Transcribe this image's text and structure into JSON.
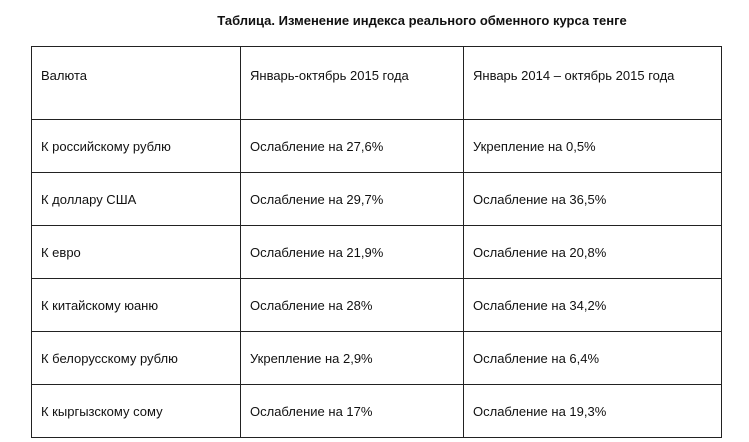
{
  "title": "Таблица. Изменение индекса реального обменного курса тенге",
  "table": {
    "header": [
      "Валюта",
      "Январь-октябрь 2015 года",
      "Январь 2014 – октябрь 2015 года"
    ],
    "rows": [
      [
        "К российскому рублю",
        "Ослабление на 27,6%",
        "Укрепление на 0,5%"
      ],
      [
        "К доллару США",
        "Ослабление на 29,7%",
        "Ослабление на 36,5%"
      ],
      [
        "К евро",
        "Ослабление на 21,9%",
        "Ослабление на 20,8%"
      ],
      [
        "К китайскому юаню",
        "Ослабление на 28%",
        "Ослабление на 34,2%"
      ],
      [
        "К белорусскому рублю",
        "Укрепление на 2,9%",
        "Ослабление на 6,4%"
      ],
      [
        "К кыргызскому сому",
        "Ослабление на 17%",
        "Ослабление на 19,3%"
      ]
    ]
  }
}
